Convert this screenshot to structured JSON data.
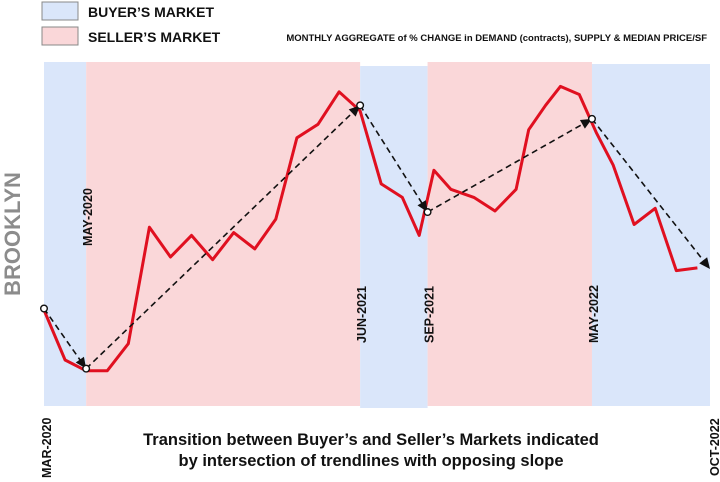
{
  "chart_data": {
    "type": "line",
    "subtitle": "MONTHLY AGGREGATE of % CHANGE in DEMAND (contracts), SUPPLY & MEDIAN PRICE/SF",
    "ylabel": "BROOKLYN",
    "caption_lines": [
      "Transition between Buyer’s and Seller’s Markets indicated",
      "by intersection of trendlines with opposing slope"
    ],
    "legend": [
      {
        "label": "BUYER’S MARKET",
        "color": "#dae6fa"
      },
      {
        "label": "SELLER’S MARKET",
        "color": "#fad7d9"
      }
    ],
    "x_start_label": "MAR-2020",
    "x_end_label": "OCT-2022",
    "regions": [
      {
        "start": 0,
        "end": 2,
        "market": "buyer"
      },
      {
        "start": 2,
        "end": 15,
        "market": "seller"
      },
      {
        "start": 15,
        "end": 18.2,
        "market": "buyer"
      },
      {
        "start": 18.2,
        "end": 26,
        "market": "seller"
      },
      {
        "start": 26,
        "end": 31.6,
        "market": "buyer"
      }
    ],
    "transition_labels": [
      {
        "label": "MAY-2020",
        "x": 2,
        "side": "top"
      },
      {
        "label": "JUN-2021",
        "x": 15,
        "side": "bottom"
      },
      {
        "label": "SEP-2021",
        "x": 18.2,
        "side": "bottom"
      },
      {
        "label": "MAY-2022",
        "x": 26,
        "side": "bottom"
      }
    ],
    "series": [
      {
        "color": "#e01020",
        "points": [
          [
            0,
            -1.8
          ],
          [
            1,
            -11
          ],
          [
            2,
            -13
          ],
          [
            3,
            -13
          ],
          [
            4,
            -8
          ],
          [
            5,
            13.5
          ],
          [
            6,
            8
          ],
          [
            7,
            12
          ],
          [
            8,
            7.5
          ],
          [
            9,
            12.5
          ],
          [
            10,
            9.5
          ],
          [
            11,
            15
          ],
          [
            12,
            30
          ],
          [
            13,
            32.5
          ],
          [
            14,
            38.5
          ],
          [
            15,
            35
          ],
          [
            16,
            21.5
          ],
          [
            17,
            19
          ],
          [
            17.8,
            12
          ],
          [
            18.5,
            24
          ],
          [
            19.3,
            20.5
          ],
          [
            20.4,
            19
          ],
          [
            21.4,
            16.5
          ],
          [
            22.4,
            20.5
          ],
          [
            23,
            31.5
          ],
          [
            23.8,
            36
          ],
          [
            24.5,
            39.5
          ],
          [
            25.4,
            38
          ],
          [
            26.2,
            31
          ],
          [
            27,
            25
          ],
          [
            28,
            14
          ],
          [
            29,
            17
          ],
          [
            30,
            5.5
          ],
          [
            31,
            6
          ]
        ]
      }
    ],
    "trendline_points": [
      [
        0,
        -1.5
      ],
      [
        2,
        -12.6
      ],
      [
        15,
        36
      ],
      [
        18.2,
        16.3
      ],
      [
        26,
        33.5
      ],
      [
        31.6,
        5.8
      ]
    ],
    "xlim": [
      0,
      31.6
    ],
    "ylim": [
      -19.5,
      44
    ]
  }
}
